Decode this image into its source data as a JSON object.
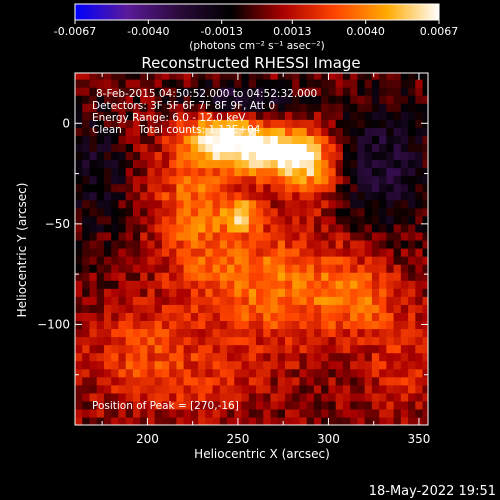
{
  "chart_data": {
    "type": "heatmap",
    "title": "Reconstructed RHESSI Image",
    "xlabel": "Heliocentric X (arcsec)",
    "ylabel": "Heliocentric Y (arcsec)",
    "xlim": [
      160,
      355
    ],
    "ylim": [
      -150,
      25
    ],
    "x_ticks": [
      200,
      250,
      300,
      350
    ],
    "y_ticks": [
      0,
      -50,
      -100
    ],
    "colorbar": {
      "min": -0.0067,
      "max": 0.0067,
      "tick_values": [
        -0.0067,
        -0.004,
        -0.0013,
        0.0013,
        0.004,
        0.0067
      ],
      "tick_labels": [
        "-0.0067",
        "-0.0040",
        "-0.0013",
        "0.0013",
        "0.0040",
        "0.0067"
      ],
      "unit_label": "(photons cm⁻² s⁻¹ asec⁻²)",
      "colors": [
        "#0000ff",
        "#5a1a9a",
        "#2a0a3a",
        "#000000",
        "#aa0000",
        "#ff4400",
        "#ffaa00",
        "#ffffff"
      ]
    },
    "info_lines": [
      "8-Feb-2015 04:50:52.000 to 04:52:32.000",
      "Detectors: 3F 5F 6F 7F 8F 9F, Att 0",
      "Energy Range: 6.0 - 12.0 keV",
      "Clean     Total counts: 1.13E+04"
    ],
    "peak_label": "Position of Peak = [270,-16]",
    "sources": [
      {
        "x": 270,
        "y": -14,
        "amp": 0.0067,
        "sx": 16,
        "sy": 9
      },
      {
        "x": 240,
        "y": -7,
        "amp": 0.0058,
        "sx": 15,
        "sy": 8
      },
      {
        "x": 292,
        "y": -22,
        "amp": 0.0036,
        "sx": 10,
        "sy": 12
      },
      {
        "x": 252,
        "y": -45,
        "amp": 0.0038,
        "sx": 8,
        "sy": 6
      },
      {
        "x": 225,
        "y": -40,
        "amp": 0.003,
        "sx": 15,
        "sy": 22
      },
      {
        "x": 265,
        "y": -80,
        "amp": 0.0032,
        "sx": 30,
        "sy": 22
      },
      {
        "x": 315,
        "y": -85,
        "amp": 0.0026,
        "sx": 18,
        "sy": 14
      },
      {
        "x": 195,
        "y": -110,
        "amp": 0.0018,
        "sx": 22,
        "sy": 15
      },
      {
        "x": 220,
        "y": -130,
        "amp": 0.0016,
        "sx": 30,
        "sy": 12
      },
      {
        "x": 340,
        "y": -120,
        "amp": 0.0016,
        "sx": 14,
        "sy": 18
      },
      {
        "x": 250,
        "y": 12,
        "amp": -0.0032,
        "sx": 25,
        "sy": 6
      },
      {
        "x": 330,
        "y": -20,
        "amp": -0.0028,
        "sx": 20,
        "sy": 25
      },
      {
        "x": 172,
        "y": -25,
        "amp": -0.0022,
        "sx": 12,
        "sy": 25
      }
    ]
  },
  "footer_timestamp": "18-May-2022 19:51"
}
